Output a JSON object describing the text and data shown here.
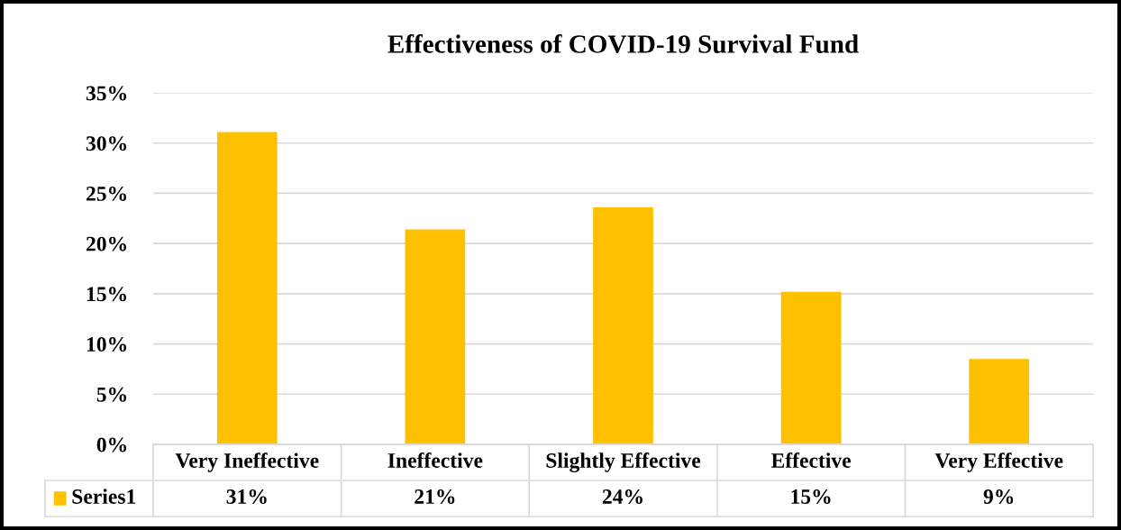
{
  "chart_data": {
    "type": "bar",
    "title": "Effectiveness of COVID-19 Survival Fund",
    "categories": [
      "Very Ineffective",
      "Ineffective",
      "Slightly Effective",
      "Effective",
      "Very Effective"
    ],
    "series": [
      {
        "name": "Series1",
        "color": "#ffc000",
        "values": [
          31.1,
          21.4,
          23.6,
          15.2,
          8.5
        ],
        "value_labels": [
          "31%",
          "21%",
          "24%",
          "15%",
          "9%"
        ]
      }
    ],
    "ylim": [
      0,
      35
    ],
    "yticks": [
      {
        "value": 0,
        "label": "0%"
      },
      {
        "value": 5,
        "label": "5%"
      },
      {
        "value": 10,
        "label": "10%"
      },
      {
        "value": 15,
        "label": "15%"
      },
      {
        "value": 20,
        "label": "20%"
      },
      {
        "value": 25,
        "label": "25%"
      },
      {
        "value": 30,
        "label": "30%"
      },
      {
        "value": 35,
        "label": "35%"
      }
    ],
    "grid": "y"
  }
}
